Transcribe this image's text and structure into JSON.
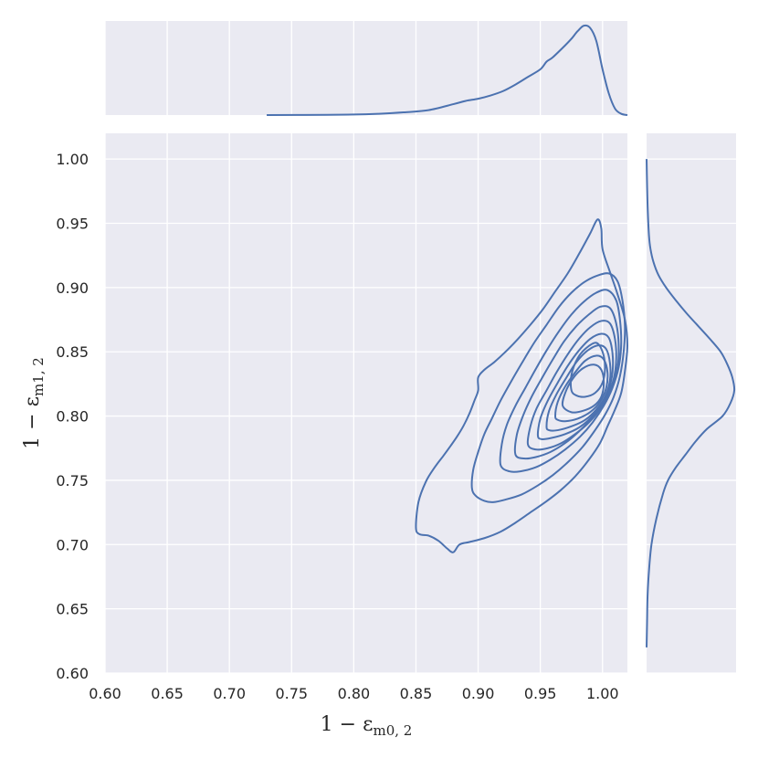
{
  "chart_data": {
    "type": "kde-jointplot",
    "xlabel": {
      "main": "1 − ε",
      "sub": "m0, 2"
    },
    "ylabel": {
      "main": "1 − ε",
      "sub": "m1, 2"
    },
    "xlim": [
      0.6,
      1.02
    ],
    "ylim": [
      0.6,
      1.02
    ],
    "grid": true,
    "x_ticks": [
      0.6,
      0.65,
      0.7,
      0.75,
      0.8,
      0.85,
      0.9,
      0.95,
      1.0
    ],
    "x_tick_labels": [
      "0.60",
      "0.65",
      "0.70",
      "0.75",
      "0.80",
      "0.85",
      "0.90",
      "0.95",
      "1.00"
    ],
    "y_ticks": [
      0.6,
      0.65,
      0.7,
      0.75,
      0.8,
      0.85,
      0.9,
      0.95,
      1.0
    ],
    "y_tick_labels": [
      "0.60",
      "0.65",
      "0.70",
      "0.75",
      "0.80",
      "0.85",
      "0.90",
      "0.95",
      "1.00"
    ],
    "colors": {
      "line": "#4c72b0",
      "panel": "#eaeaf2",
      "grid": "#ffffff",
      "text": "#262626"
    },
    "contours": [
      [
        [
          0.85,
          0.713
        ],
        [
          0.852,
          0.733
        ],
        [
          0.858,
          0.749
        ],
        [
          0.865,
          0.76
        ],
        [
          0.872,
          0.769
        ],
        [
          0.878,
          0.777
        ],
        [
          0.883,
          0.784
        ],
        [
          0.888,
          0.792
        ],
        [
          0.893,
          0.802
        ],
        [
          0.897,
          0.812
        ],
        [
          0.9,
          0.82
        ],
        [
          0.9,
          0.83
        ],
        [
          0.905,
          0.836
        ],
        [
          0.913,
          0.842
        ],
        [
          0.922,
          0.85
        ],
        [
          0.932,
          0.86
        ],
        [
          0.942,
          0.871
        ],
        [
          0.952,
          0.883
        ],
        [
          0.962,
          0.897
        ],
        [
          0.972,
          0.911
        ],
        [
          0.981,
          0.926
        ],
        [
          0.99,
          0.942
        ],
        [
          0.996,
          0.953
        ],
        [
          0.999,
          0.946
        ],
        [
          1.0,
          0.93
        ],
        [
          1.006,
          0.912
        ],
        [
          1.012,
          0.895
        ],
        [
          1.018,
          0.875
        ],
        [
          1.02,
          0.855
        ],
        [
          1.018,
          0.835
        ],
        [
          1.015,
          0.818
        ],
        [
          1.01,
          0.805
        ],
        [
          1.004,
          0.792
        ],
        [
          0.998,
          0.779
        ],
        [
          0.989,
          0.766
        ],
        [
          0.978,
          0.753
        ],
        [
          0.966,
          0.742
        ],
        [
          0.954,
          0.733
        ],
        [
          0.942,
          0.725
        ],
        [
          0.93,
          0.717
        ],
        [
          0.918,
          0.71
        ],
        [
          0.905,
          0.705
        ],
        [
          0.893,
          0.702
        ],
        [
          0.885,
          0.7
        ],
        [
          0.88,
          0.694
        ],
        [
          0.875,
          0.697
        ],
        [
          0.868,
          0.703
        ],
        [
          0.86,
          0.707
        ],
        [
          0.853,
          0.708
        ],
        [
          0.85,
          0.713
        ]
      ],
      [
        [
          0.895,
          0.744
        ],
        [
          0.896,
          0.758
        ],
        [
          0.9,
          0.772
        ],
        [
          0.905,
          0.786
        ],
        [
          0.911,
          0.798
        ],
        [
          0.918,
          0.812
        ],
        [
          0.926,
          0.826
        ],
        [
          0.935,
          0.841
        ],
        [
          0.945,
          0.857
        ],
        [
          0.955,
          0.871
        ],
        [
          0.965,
          0.885
        ],
        [
          0.975,
          0.896
        ],
        [
          0.985,
          0.904
        ],
        [
          0.995,
          0.909
        ],
        [
          1.005,
          0.911
        ],
        [
          1.012,
          0.905
        ],
        [
          1.016,
          0.89
        ],
        [
          1.018,
          0.87
        ],
        [
          1.017,
          0.85
        ],
        [
          1.014,
          0.831
        ],
        [
          1.009,
          0.815
        ],
        [
          1.002,
          0.801
        ],
        [
          0.994,
          0.789
        ],
        [
          0.984,
          0.776
        ],
        [
          0.972,
          0.764
        ],
        [
          0.96,
          0.754
        ],
        [
          0.948,
          0.746
        ],
        [
          0.935,
          0.739
        ],
        [
          0.922,
          0.735
        ],
        [
          0.912,
          0.733
        ],
        [
          0.905,
          0.734
        ],
        [
          0.898,
          0.738
        ],
        [
          0.895,
          0.744
        ]
      ],
      [
        [
          0.918,
          0.762
        ],
        [
          0.919,
          0.778
        ],
        [
          0.923,
          0.793
        ],
        [
          0.93,
          0.808
        ],
        [
          0.938,
          0.822
        ],
        [
          0.946,
          0.836
        ],
        [
          0.955,
          0.851
        ],
        [
          0.965,
          0.866
        ],
        [
          0.975,
          0.879
        ],
        [
          0.985,
          0.889
        ],
        [
          0.995,
          0.896
        ],
        [
          1.004,
          0.898
        ],
        [
          1.011,
          0.89
        ],
        [
          1.014,
          0.875
        ],
        [
          1.015,
          0.856
        ],
        [
          1.013,
          0.838
        ],
        [
          1.008,
          0.822
        ],
        [
          1.001,
          0.808
        ],
        [
          0.992,
          0.795
        ],
        [
          0.982,
          0.784
        ],
        [
          0.97,
          0.774
        ],
        [
          0.958,
          0.766
        ],
        [
          0.946,
          0.76
        ],
        [
          0.934,
          0.757
        ],
        [
          0.925,
          0.757
        ],
        [
          0.918,
          0.762
        ]
      ],
      [
        [
          0.93,
          0.77
        ],
        [
          0.931,
          0.785
        ],
        [
          0.936,
          0.8
        ],
        [
          0.943,
          0.815
        ],
        [
          0.951,
          0.829
        ],
        [
          0.96,
          0.844
        ],
        [
          0.969,
          0.858
        ],
        [
          0.979,
          0.87
        ],
        [
          0.989,
          0.879
        ],
        [
          0.998,
          0.885
        ],
        [
          1.006,
          0.884
        ],
        [
          1.011,
          0.872
        ],
        [
          1.013,
          0.855
        ],
        [
          1.012,
          0.838
        ],
        [
          1.007,
          0.823
        ],
        [
          1.0,
          0.81
        ],
        [
          0.991,
          0.798
        ],
        [
          0.981,
          0.788
        ],
        [
          0.97,
          0.779
        ],
        [
          0.958,
          0.772
        ],
        [
          0.946,
          0.768
        ],
        [
          0.937,
          0.767
        ],
        [
          0.93,
          0.77
        ]
      ],
      [
        [
          0.94,
          0.778
        ],
        [
          0.942,
          0.792
        ],
        [
          0.947,
          0.806
        ],
        [
          0.955,
          0.82
        ],
        [
          0.963,
          0.834
        ],
        [
          0.972,
          0.848
        ],
        [
          0.981,
          0.86
        ],
        [
          0.99,
          0.869
        ],
        [
          0.999,
          0.874
        ],
        [
          1.006,
          0.872
        ],
        [
          1.01,
          0.86
        ],
        [
          1.011,
          0.844
        ],
        [
          1.009,
          0.829
        ],
        [
          1.004,
          0.816
        ],
        [
          0.997,
          0.804
        ],
        [
          0.988,
          0.794
        ],
        [
          0.978,
          0.786
        ],
        [
          0.967,
          0.779
        ],
        [
          0.956,
          0.775
        ],
        [
          0.946,
          0.774
        ],
        [
          0.94,
          0.778
        ]
      ],
      [
        [
          0.948,
          0.785
        ],
        [
          0.95,
          0.798
        ],
        [
          0.956,
          0.812
        ],
        [
          0.964,
          0.826
        ],
        [
          0.972,
          0.839
        ],
        [
          0.981,
          0.851
        ],
        [
          0.99,
          0.86
        ],
        [
          0.999,
          0.864
        ],
        [
          1.005,
          0.861
        ],
        [
          1.008,
          0.849
        ],
        [
          1.008,
          0.834
        ],
        [
          1.005,
          0.821
        ],
        [
          0.999,
          0.809
        ],
        [
          0.991,
          0.799
        ],
        [
          0.981,
          0.791
        ],
        [
          0.97,
          0.786
        ],
        [
          0.959,
          0.783
        ],
        [
          0.951,
          0.782
        ],
        [
          0.948,
          0.785
        ]
      ],
      [
        [
          0.955,
          0.792
        ],
        [
          0.957,
          0.804
        ],
        [
          0.963,
          0.817
        ],
        [
          0.971,
          0.83
        ],
        [
          0.979,
          0.842
        ],
        [
          0.988,
          0.851
        ],
        [
          0.997,
          0.855
        ],
        [
          1.003,
          0.852
        ],
        [
          1.006,
          0.841
        ],
        [
          1.006,
          0.828
        ],
        [
          1.002,
          0.815
        ],
        [
          0.995,
          0.805
        ],
        [
          0.986,
          0.797
        ],
        [
          0.975,
          0.792
        ],
        [
          0.964,
          0.789
        ],
        [
          0.957,
          0.789
        ],
        [
          0.955,
          0.792
        ]
      ],
      [
        [
          0.962,
          0.8
        ],
        [
          0.964,
          0.811
        ],
        [
          0.97,
          0.823
        ],
        [
          0.978,
          0.834
        ],
        [
          0.986,
          0.843
        ],
        [
          0.995,
          0.847
        ],
        [
          1.001,
          0.844
        ],
        [
          1.004,
          0.834
        ],
        [
          1.003,
          0.822
        ],
        [
          0.998,
          0.811
        ],
        [
          0.99,
          0.803
        ],
        [
          0.98,
          0.798
        ],
        [
          0.97,
          0.796
        ],
        [
          0.964,
          0.797
        ],
        [
          0.962,
          0.8
        ]
      ],
      [
        [
          0.968,
          0.808
        ],
        [
          0.97,
          0.818
        ],
        [
          0.976,
          0.829
        ],
        [
          0.984,
          0.837
        ],
        [
          0.993,
          0.84
        ],
        [
          0.999,
          0.836
        ],
        [
          1.001,
          0.826
        ],
        [
          0.999,
          0.815
        ],
        [
          0.993,
          0.808
        ],
        [
          0.984,
          0.804
        ],
        [
          0.975,
          0.803
        ],
        [
          0.968,
          0.808
        ]
      ],
      [
        [
          0.975,
          0.82
        ],
        [
          0.975,
          0.832
        ],
        [
          0.98,
          0.845
        ],
        [
          0.987,
          0.853
        ],
        [
          0.995,
          0.857
        ],
        [
          1.0,
          0.85
        ],
        [
          1.002,
          0.838
        ],
        [
          1.0,
          0.826
        ],
        [
          0.994,
          0.818
        ],
        [
          0.986,
          0.815
        ],
        [
          0.979,
          0.816
        ],
        [
          0.975,
          0.82
        ]
      ]
    ],
    "x_marginal": {
      "x": [
        0.73,
        0.76,
        0.8,
        0.82,
        0.84,
        0.86,
        0.88,
        0.89,
        0.9,
        0.91,
        0.92,
        0.93,
        0.94,
        0.95,
        0.955,
        0.96,
        0.97,
        0.975,
        0.98,
        0.985,
        0.99,
        0.995,
        1.0,
        1.005,
        1.01,
        1.015,
        1.02
      ],
      "density": [
        0.0,
        0.001,
        0.005,
        0.012,
        0.025,
        0.045,
        0.1,
        0.13,
        0.15,
        0.18,
        0.22,
        0.28,
        0.35,
        0.42,
        0.49,
        0.53,
        0.64,
        0.7,
        0.77,
        0.82,
        0.8,
        0.68,
        0.42,
        0.2,
        0.06,
        0.012,
        0.0
      ]
    },
    "y_marginal": {
      "y": [
        0.62,
        0.64,
        0.66,
        0.68,
        0.7,
        0.72,
        0.74,
        0.75,
        0.76,
        0.77,
        0.78,
        0.79,
        0.8,
        0.81,
        0.82,
        0.83,
        0.84,
        0.85,
        0.86,
        0.87,
        0.88,
        0.89,
        0.9,
        0.91,
        0.92,
        0.93,
        0.94,
        0.96,
        0.98,
        1.0
      ],
      "density": [
        0.0,
        0.005,
        0.01,
        0.025,
        0.05,
        0.1,
        0.17,
        0.22,
        0.3,
        0.4,
        0.5,
        0.62,
        0.78,
        0.86,
        0.9,
        0.88,
        0.83,
        0.76,
        0.65,
        0.53,
        0.41,
        0.3,
        0.2,
        0.12,
        0.07,
        0.04,
        0.025,
        0.012,
        0.005,
        0.0
      ]
    }
  }
}
